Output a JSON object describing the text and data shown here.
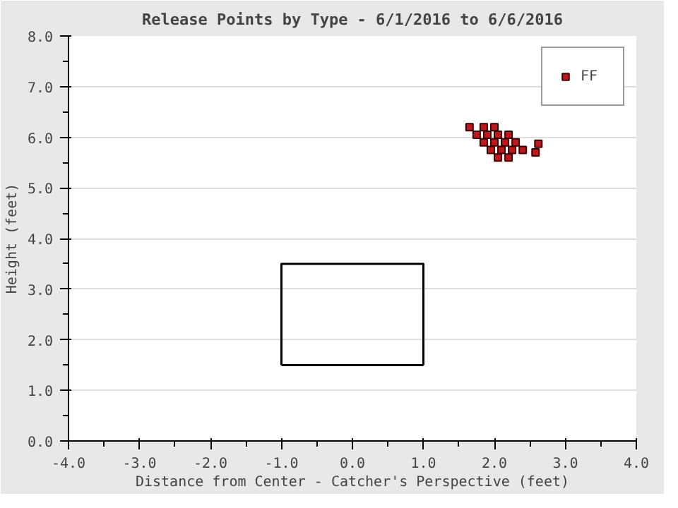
{
  "chart_data": {
    "type": "scatter",
    "title": "Release Points by Type - 6/1/2016 to 6/6/2016",
    "xlabel": "Distance from Center - Catcher's Perspective (feet)",
    "ylabel": "Height (feet)",
    "xlim": [
      -4,
      4
    ],
    "ylim": [
      0,
      8
    ],
    "xticks": [
      {
        "value": -4,
        "label": "-4.0"
      },
      {
        "value": -3,
        "label": "-3.0"
      },
      {
        "value": -2,
        "label": "-2.0"
      },
      {
        "value": -1,
        "label": "-1.0"
      },
      {
        "value": 0,
        "label": "0.0"
      },
      {
        "value": 1,
        "label": "1.0"
      },
      {
        "value": 2,
        "label": "2.0"
      },
      {
        "value": 3,
        "label": "3.0"
      },
      {
        "value": 4,
        "label": "4.0"
      }
    ],
    "yticks": [
      {
        "value": 0,
        "label": "0.0"
      },
      {
        "value": 1,
        "label": "1.0"
      },
      {
        "value": 2,
        "label": "2.0"
      },
      {
        "value": 3,
        "label": "3.0"
      },
      {
        "value": 4,
        "label": "4.0"
      },
      {
        "value": 5,
        "label": "5.0"
      },
      {
        "value": 6,
        "label": "6.0"
      },
      {
        "value": 7,
        "label": "7.0"
      },
      {
        "value": 8,
        "label": "8.0"
      }
    ],
    "grid": "y",
    "legend": "top right",
    "marker": "square",
    "series": [
      {
        "name": "FF",
        "color": "#c0171c",
        "x": [
          1.65,
          1.85,
          2.0,
          1.75,
          1.9,
          2.05,
          2.2,
          1.85,
          2.0,
          2.15,
          2.3,
          1.95,
          2.1,
          2.25,
          2.4,
          2.05,
          2.2,
          2.58,
          2.62
        ],
        "values": [
          6.2,
          6.2,
          6.2,
          6.05,
          6.05,
          6.05,
          6.05,
          5.9,
          5.9,
          5.9,
          5.9,
          5.75,
          5.75,
          5.75,
          5.75,
          5.6,
          5.6,
          5.7,
          5.87
        ]
      },
      {
        "type": "line",
        "color": "#000000",
        "x": [
          -1,
          -1,
          1,
          1
        ],
        "values": [
          1.5,
          3.5,
          3.5,
          1.5
        ],
        "marker": "none"
      },
      {
        "type": "line",
        "color": "#000000",
        "x": [
          -1,
          1
        ],
        "values": [
          1.5,
          1.5
        ],
        "marker": "none"
      }
    ]
  }
}
